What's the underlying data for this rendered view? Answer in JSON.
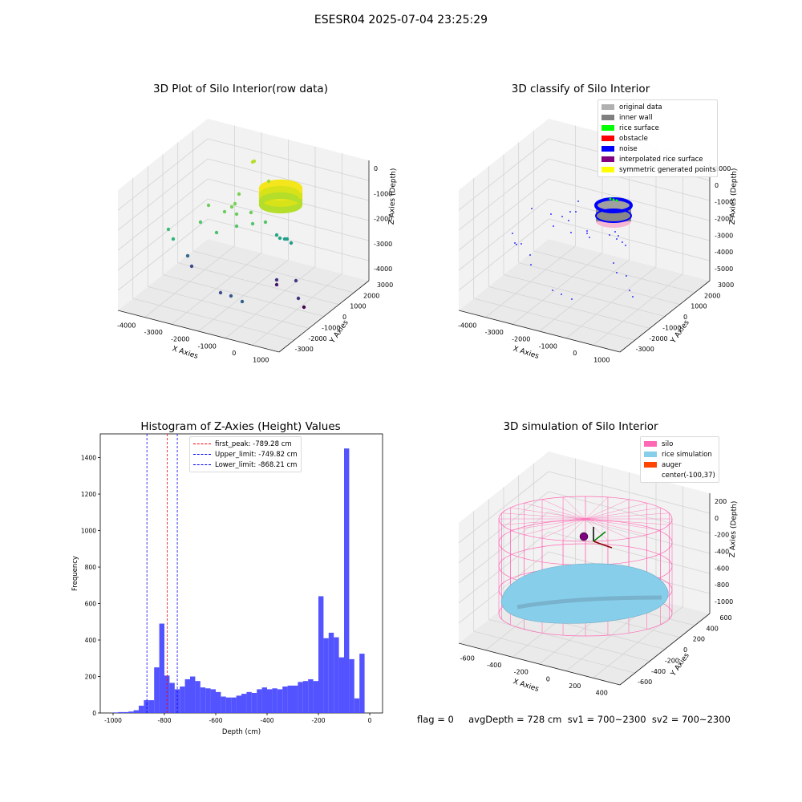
{
  "suptitle": "ESESR04 2025-07-04 23:25:29",
  "colors": {
    "pane": "#f2f2f2",
    "pane2": "#eaeaea",
    "grid": "#d4d4d4",
    "axis": "#222222",
    "hist": "#4a4aff",
    "red_line": "#ff0000",
    "blue_line": "#0000ff",
    "silo": "#ff69b4",
    "rice": "#87ceeb",
    "auger": "#ff4500"
  },
  "plot1": {
    "title": "3D Plot of Silo Interior(row data)",
    "xlabel": "X Axies",
    "ylabel": "Y Axies",
    "zlabel": "Z Axies (Depth)",
    "xticks": [
      "-4000",
      "-3000",
      "-2000",
      "-1000",
      "0",
      "1000"
    ],
    "yticks": [
      "3000",
      "2000",
      "1000",
      "0",
      "-1000",
      "-2000",
      "-3000"
    ],
    "zticks": [
      "0",
      "-1000",
      "-2000",
      "-3000",
      "-4000"
    ],
    "colormap": "viridis"
  },
  "plot2": {
    "title": "3D classify of Silo Interior",
    "xlabel": "X Axies",
    "ylabel": "Y Axies",
    "zlabel": "Z Axies (Depth)",
    "xticks": [
      "-4000",
      "-3000",
      "-2000",
      "-1000",
      "0",
      "1000"
    ],
    "yticks": [
      "3000",
      "2000",
      "1000",
      "0",
      "-1000",
      "-2000",
      "-3000"
    ],
    "zticks": [
      "1000",
      "0",
      "-1000",
      "-2000",
      "-3000",
      "-4000",
      "-5000"
    ],
    "legend": [
      {
        "label": "original data",
        "color": "#b0b0b0"
      },
      {
        "label": "inner wall",
        "color": "#808080"
      },
      {
        "label": "rice surface",
        "color": "#00ff00"
      },
      {
        "label": "obstacle",
        "color": "#ff0000"
      },
      {
        "label": "noise",
        "color": "#0000ff"
      },
      {
        "label": "interpolated rice surface",
        "color": "#800080"
      },
      {
        "label": "symmetric generated points",
        "color": "#ffff00"
      }
    ]
  },
  "plot4": {
    "title": "3D simulation of Silo Interior",
    "xlabel": "X Axies",
    "ylabel": "Y Axies",
    "zlabel": "Z Axies (Depth)",
    "xticks": [
      "-600",
      "-400",
      "-200",
      "0",
      "200",
      "400"
    ],
    "yticks": [
      "600",
      "400",
      "200",
      "0",
      "-200",
      "-400",
      "-600"
    ],
    "zticks": [
      "200",
      "0",
      "-200",
      "-400",
      "-600",
      "-800",
      "-1000"
    ],
    "legend": [
      {
        "label": "silo",
        "color": "#ff69b4"
      },
      {
        "label": "rice simulation",
        "color": "#87ceeb"
      },
      {
        "label": "auger",
        "color": "#ff4500"
      },
      {
        "label": "center(-100,37)",
        "color": ""
      }
    ]
  },
  "footer": "flag = 0     avgDepth = 728 cm  sv1 = 700~2300  sv2 = 700~2300",
  "chart_data": {
    "type": "bar",
    "title": "Histogram of Z-Axies (Height) Values",
    "xlabel": "Depth (cm)",
    "ylabel": "Frequency",
    "xlim": [
      -1050,
      50
    ],
    "ylim": [
      0,
      1530
    ],
    "xticks": [
      -1000,
      -800,
      -600,
      -400,
      -200,
      0
    ],
    "yticks": [
      0,
      200,
      400,
      600,
      800,
      1000,
      1200,
      1400
    ],
    "bin_start": -1000,
    "bin_width": 20,
    "values": [
      3,
      5,
      5,
      8,
      15,
      40,
      70,
      70,
      250,
      490,
      205,
      165,
      130,
      145,
      185,
      200,
      175,
      140,
      135,
      130,
      115,
      90,
      85,
      85,
      95,
      105,
      115,
      110,
      130,
      140,
      130,
      135,
      130,
      145,
      150,
      150,
      170,
      175,
      185,
      175,
      640,
      410,
      440,
      415,
      305,
      1450,
      295,
      80,
      325
    ],
    "vlines": [
      {
        "label": "first_peak: -789.28 cm",
        "x": -789.28,
        "color": "#ff0000"
      },
      {
        "label": "Upper_limit: -749.82 cm",
        "x": -749.82,
        "color": "#0000ff"
      },
      {
        "label": "Lower_limit: -868.21 cm",
        "x": -868.21,
        "color": "#0000ff"
      }
    ]
  }
}
